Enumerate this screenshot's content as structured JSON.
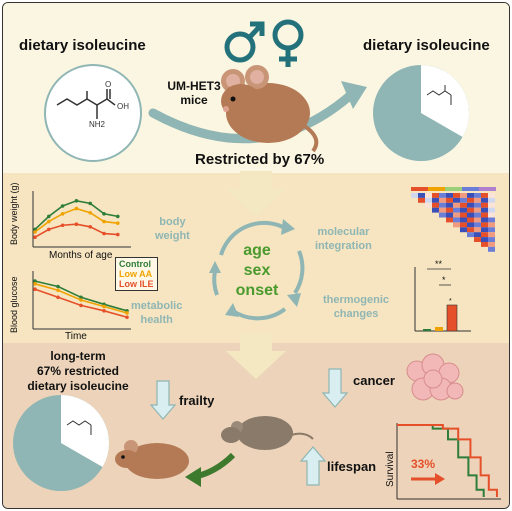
{
  "top": {
    "left_title": "dietary isoleucine",
    "right_title": "dietary isoleucine",
    "mouse_strain_line1": "UM-HET3",
    "mouse_strain_line2": "mice",
    "restriction": "Restricted by 67%",
    "sex_symbols": "♂ ♀",
    "molecule_labels": {
      "oh": "OH",
      "o": "O",
      "nh2": "NH2"
    }
  },
  "middle": {
    "center_lines": [
      "age",
      "sex",
      "onset"
    ],
    "body_weight_label": [
      "body",
      "weight"
    ],
    "molecular_label": [
      "molecular",
      "integration"
    ],
    "metabolic_label": [
      "metabolic",
      "health"
    ],
    "thermogenic_label": [
      "thermogenic",
      "changes"
    ],
    "body_weight_ylabel": "Body weight (g)",
    "body_weight_xlabel": "Months of age",
    "glucose_ylabel": "Blood glucose",
    "glucose_xlabel": "Time",
    "legend": [
      {
        "label": "Control",
        "color": "#2e7d3a"
      },
      {
        "label": "Low AA",
        "color": "#f0a300"
      },
      {
        "label": "Low ILE",
        "color": "#e5502a"
      }
    ],
    "significance": [
      "**",
      "*",
      "*"
    ]
  },
  "bottom": {
    "long_term": [
      "long-term",
      "67% restricted",
      "dietary isoleucine"
    ],
    "frailty": "frailty",
    "cancer": "cancer",
    "lifespan": "lifespan",
    "survival_label": "Survival",
    "percent": "33%"
  },
  "colors": {
    "teal": "#8fb6b4",
    "green": "#2e7d3a",
    "orange": "#e5502a",
    "mouse": "#b47a55"
  }
}
